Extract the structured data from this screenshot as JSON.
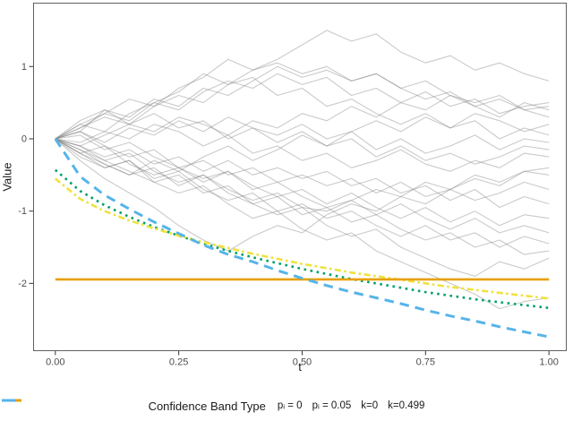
{
  "figure": {
    "background": "#FFFFFF"
  },
  "axes": {
    "x_title": "t",
    "y_title": "Value"
  },
  "legend": {
    "title": "Confidence Band Type",
    "items": [
      {
        "label": "pᵢ = 0",
        "color": "#00A06A",
        "dash": "3 10",
        "width": 3
      },
      {
        "label": "pᵢ = 0.05",
        "color": "#EFE23D",
        "dash": "4.5 9",
        "width": 3
      },
      {
        "label": "k=0",
        "color": "#E8A000",
        "dash": "",
        "width": 3
      },
      {
        "label": "k=0.499",
        "color": "#56B4E9",
        "dash": "16 10",
        "width": 3
      }
    ]
  },
  "chart_data": {
    "type": "line",
    "title": "",
    "xlabel": "t",
    "ylabel": "Value",
    "xlim": [
      -0.045,
      1.036
    ],
    "ylim": [
      -2.937,
      1.883
    ],
    "grid": false,
    "legend_position": "bottom",
    "panel_border_color": "#606060",
    "tick_color": "#333333",
    "tick_label_color": "#4d4d4d",
    "x_ticks": {
      "values": [
        0,
        0.25,
        0.5,
        0.75,
        1.0
      ],
      "labels": [
        "0.00",
        "0.25",
        "0.50",
        "0.75",
        "1.00"
      ]
    },
    "y_ticks": {
      "values": [
        1,
        0,
        -1,
        -2
      ],
      "labels": [
        "1",
        "0",
        "-1",
        "-2"
      ]
    },
    "bands": [
      {
        "name": "pᵢ = 0",
        "color": "#00A06A",
        "dash": "2.6 4.6",
        "width": 2.6,
        "x_start": 0,
        "x_step": 0.05,
        "values": [
          -0.43,
          -0.72,
          -0.92,
          -1.08,
          -1.22,
          -1.34,
          -1.45,
          -1.55,
          -1.64,
          -1.72,
          -1.8,
          -1.87,
          -1.94,
          -2.0,
          -2.06,
          -2.12,
          -2.17,
          -2.22,
          -2.26,
          -2.3,
          -2.34
        ]
      },
      {
        "name": "pᵢ = 0.05",
        "color": "#EFE23D",
        "dash": "7 3.5 2.6 3.5",
        "width": 2.6,
        "x_start": 0,
        "x_step": 0.05,
        "values": [
          -0.55,
          -0.83,
          -1.0,
          -1.13,
          -1.24,
          -1.34,
          -1.43,
          -1.51,
          -1.59,
          -1.66,
          -1.73,
          -1.79,
          -1.85,
          -1.9,
          -1.95,
          -2.0,
          -2.05,
          -2.09,
          -2.13,
          -2.17,
          -2.21
        ]
      },
      {
        "name": "k=0",
        "color": "#E8A000",
        "dash": "",
        "width": 2.6,
        "x_start": 0,
        "x_step": 1,
        "values": [
          -1.945,
          -1.945
        ]
      },
      {
        "name": "k=0.499",
        "color": "#56B4E9",
        "dash": "10.5 7",
        "width": 3,
        "x_start": 0,
        "x_step": 0.05,
        "values": [
          0,
          -0.52,
          -0.78,
          -0.97,
          -1.15,
          -1.31,
          -1.47,
          -1.6,
          -1.7,
          -1.82,
          -1.93,
          -2.03,
          -2.12,
          -2.2,
          -2.28,
          -2.37,
          -2.45,
          -2.52,
          -2.6,
          -2.67,
          -2.74
        ]
      }
    ],
    "random_walks": {
      "note": "approximate traced sample paths, start at 0",
      "color": "rgba(128,128,128,0.42)",
      "width": 1.1,
      "x_start": 0,
      "x_step": 0.05,
      "series": [
        [
          0,
          0.15,
          0.3,
          0.2,
          0.45,
          0.6,
          0.5,
          0.75,
          0.95,
          1.1,
          1.3,
          1.5,
          1.35,
          1.45,
          1.2,
          1.05,
          1.15,
          0.95,
          1.05,
          0.9,
          0.8
        ],
        [
          0,
          0.2,
          0.1,
          0.35,
          0.5,
          0.4,
          0.65,
          0.8,
          0.7,
          0.9,
          0.75,
          0.85,
          0.6,
          0.7,
          0.5,
          0.65,
          0.45,
          0.55,
          0.35,
          0.45,
          0.5
        ],
        [
          0,
          0.1,
          0.4,
          0.3,
          0.55,
          0.45,
          0.7,
          0.6,
          0.8,
          1.0,
          0.85,
          0.95,
          0.8,
          0.9,
          0.7,
          0.8,
          0.6,
          0.5,
          0.6,
          0.4,
          0.45
        ],
        [
          0,
          -0.1,
          0.05,
          0.2,
          0.1,
          0.3,
          0.2,
          0.05,
          0.25,
          0.15,
          0.35,
          0.25,
          0.45,
          0.3,
          0.5,
          0.4,
          0.6,
          0.45,
          0.3,
          0.5,
          0.4
        ],
        [
          0,
          -0.2,
          -0.35,
          -0.5,
          -0.3,
          -0.45,
          -0.25,
          -0.1,
          -0.3,
          -0.15,
          0.05,
          -0.1,
          0.1,
          0.25,
          0.1,
          0.3,
          0.15,
          0.35,
          0.25,
          0.1,
          0.2
        ],
        [
          0,
          0.15,
          0.35,
          0.25,
          0.5,
          0.65,
          0.9,
          0.75,
          0.85,
          0.6,
          0.7,
          0.45,
          0.55,
          0.35,
          0.2,
          0.35,
          0.15,
          0.25,
          0.0,
          0.15,
          0.05
        ],
        [
          0,
          0.1,
          -0.05,
          0.15,
          0.05,
          0.25,
          0.1,
          0.3,
          0.15,
          0.05,
          0.2,
          0.0,
          0.1,
          -0.15,
          0.0,
          -0.2,
          -0.1,
          0.05,
          -0.15,
          0.0,
          -0.05
        ],
        [
          0,
          0.25,
          0.4,
          0.2,
          0.35,
          0.15,
          0.25,
          0.0,
          0.15,
          -0.05,
          0.1,
          -0.1,
          0.0,
          -0.25,
          -0.1,
          -0.3,
          -0.2,
          -0.35,
          -0.25,
          -0.1,
          -0.15
        ],
        [
          0,
          -0.15,
          -0.3,
          -0.2,
          -0.45,
          -0.6,
          -0.5,
          -0.7,
          -0.85,
          -0.75,
          -0.95,
          -1.0,
          -0.85,
          -0.7,
          -0.8,
          -0.6,
          -0.7,
          -0.5,
          -0.6,
          -0.45,
          -0.4
        ],
        [
          0,
          -0.3,
          -0.55,
          -0.75,
          -0.95,
          -1.2,
          -1.4,
          -1.55,
          -1.35,
          -1.2,
          -1.3,
          -1.05,
          -0.9,
          -1.0,
          -0.8,
          -0.9,
          -0.7,
          -0.55,
          -0.65,
          -0.45,
          -0.5
        ],
        [
          0,
          0.05,
          -0.15,
          -0.05,
          -0.25,
          -0.4,
          -0.3,
          -0.5,
          -0.4,
          -0.6,
          -0.5,
          -0.65,
          -0.55,
          -0.75,
          -0.6,
          -0.8,
          -0.7,
          -0.85,
          -0.75,
          -0.6,
          -0.7
        ],
        [
          0,
          -0.1,
          -0.25,
          -0.15,
          -0.35,
          -0.25,
          -0.45,
          -0.3,
          -0.5,
          -0.4,
          -0.55,
          -0.45,
          -0.65,
          -0.55,
          -0.75,
          -0.65,
          -0.85,
          -0.7,
          -0.95,
          -0.8,
          -0.9
        ],
        [
          0,
          -0.2,
          -0.1,
          -0.35,
          -0.5,
          -0.4,
          -0.6,
          -0.45,
          -0.65,
          -0.8,
          -0.7,
          -0.9,
          -0.75,
          -0.95,
          -1.1,
          -0.95,
          -1.15,
          -1.0,
          -1.2,
          -1.05,
          -1.1
        ],
        [
          0,
          0.1,
          -0.1,
          -0.25,
          -0.15,
          -0.4,
          -0.55,
          -0.45,
          -0.7,
          -0.6,
          -0.8,
          -0.95,
          -0.85,
          -1.05,
          -0.9,
          -1.1,
          -1.25,
          -1.1,
          -1.3,
          -1.2,
          -1.3
        ],
        [
          0,
          -0.25,
          -0.4,
          -0.3,
          -0.55,
          -0.45,
          -0.7,
          -0.85,
          -0.75,
          -1.0,
          -0.9,
          -1.1,
          -1.0,
          -1.2,
          -1.35,
          -1.2,
          -1.4,
          -1.3,
          -1.5,
          -1.35,
          -1.45
        ],
        [
          0,
          -0.15,
          -0.35,
          -0.5,
          -0.4,
          -0.65,
          -0.5,
          -0.75,
          -0.9,
          -0.8,
          -1.05,
          -0.95,
          -1.15,
          -1.05,
          -1.25,
          -1.4,
          -1.3,
          -1.5,
          -1.4,
          -1.6,
          -1.55
        ],
        [
          0,
          -0.1,
          -0.3,
          -0.45,
          -0.6,
          -0.5,
          -0.75,
          -0.65,
          -0.9,
          -1.05,
          -0.95,
          -1.2,
          -1.35,
          -1.25,
          -1.5,
          -1.65,
          -1.8,
          -1.9,
          -1.7,
          -1.8,
          -1.65
        ],
        [
          0,
          -0.2,
          -0.4,
          -0.3,
          -0.6,
          -0.75,
          -0.65,
          -0.9,
          -1.1,
          -1.0,
          -1.25,
          -1.4,
          -1.3,
          -1.55,
          -1.7,
          -1.85,
          -2.0,
          -2.15,
          -2.35,
          -2.25,
          -2.2
        ],
        [
          0,
          0.2,
          0.35,
          0.55,
          0.45,
          0.7,
          0.85,
          1.1,
          0.95,
          1.05,
          0.9,
          1.0,
          0.8,
          0.9,
          0.7,
          0.55,
          0.65,
          0.45,
          0.55,
          0.4,
          0.3
        ],
        [
          0,
          -0.05,
          0.1,
          0.0,
          0.2,
          0.1,
          -0.1,
          0.05,
          -0.2,
          -0.1,
          -0.3,
          -0.2,
          -0.4,
          -0.3,
          -0.15,
          -0.35,
          -0.45,
          -0.3,
          -0.4,
          -0.2,
          -0.25
        ]
      ]
    }
  }
}
